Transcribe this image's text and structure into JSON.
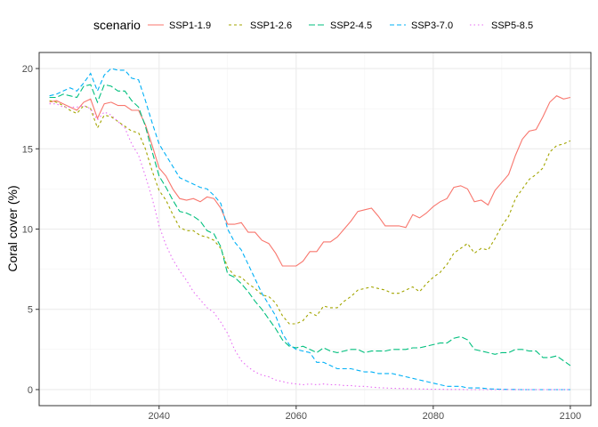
{
  "chart_data": {
    "type": "line",
    "xlabel": "",
    "ylabel": "Coral cover (%)",
    "xlim": [
      2022.5,
      2103.0
    ],
    "ylim": [
      -1.0,
      21.0
    ],
    "x_ticks": [
      2040,
      2060,
      2080,
      2100
    ],
    "y_ticks": [
      0,
      5,
      10,
      15,
      20
    ],
    "x_minor": [
      2030,
      2050,
      2070,
      2090
    ],
    "y_minor": [
      2.5,
      7.5,
      12.5,
      17.5
    ],
    "grid": true,
    "legend": {
      "title": "scenario",
      "position": "top"
    },
    "x": [
      2024,
      2025,
      2026,
      2027,
      2028,
      2029,
      2030,
      2031,
      2032,
      2033,
      2034,
      2035,
      2036,
      2037,
      2038,
      2039,
      2040,
      2041,
      2042,
      2043,
      2044,
      2045,
      2046,
      2047,
      2048,
      2049,
      2050,
      2051,
      2052,
      2053,
      2054,
      2055,
      2056,
      2057,
      2058,
      2059,
      2060,
      2061,
      2062,
      2063,
      2064,
      2065,
      2066,
      2067,
      2068,
      2069,
      2070,
      2071,
      2072,
      2073,
      2074,
      2075,
      2076,
      2077,
      2078,
      2079,
      2080,
      2081,
      2082,
      2083,
      2084,
      2085,
      2086,
      2087,
      2088,
      2089,
      2090,
      2091,
      2092,
      2093,
      2094,
      2095,
      2096,
      2097,
      2098,
      2099,
      2100
    ],
    "series": [
      {
        "name": "SSP1-1.9",
        "color": "#F8766D",
        "dash": "",
        "values": [
          17.9,
          18.0,
          17.8,
          17.6,
          17.4,
          17.9,
          18.1,
          16.9,
          17.8,
          17.9,
          17.7,
          17.7,
          17.4,
          17.4,
          16.5,
          15.2,
          13.8,
          13.3,
          12.5,
          11.9,
          11.8,
          11.9,
          11.7,
          12.0,
          11.9,
          11.3,
          10.3,
          10.3,
          10.4,
          9.8,
          9.8,
          9.3,
          9.1,
          8.5,
          7.7,
          7.7,
          7.7,
          8.0,
          8.6,
          8.6,
          9.2,
          9.2,
          9.5,
          10.0,
          10.5,
          11.1,
          11.2,
          11.3,
          10.8,
          10.2,
          10.2,
          10.2,
          10.1,
          10.9,
          10.7,
          11.0,
          11.4,
          11.7,
          11.9,
          12.6,
          12.7,
          12.5,
          11.7,
          11.8,
          11.5,
          12.4,
          12.9,
          13.4,
          14.6,
          15.6,
          16.1,
          16.2,
          17.0,
          17.9,
          18.3,
          18.1,
          18.2
        ]
      },
      {
        "name": "SSP1-2.6",
        "color": "#A3A500",
        "dash": "3,3",
        "values": [
          18.0,
          17.9,
          17.7,
          17.4,
          17.2,
          17.7,
          17.5,
          16.3,
          17.1,
          17.0,
          16.7,
          16.4,
          16.1,
          16.0,
          15.0,
          13.6,
          12.4,
          11.8,
          10.9,
          10.1,
          9.9,
          9.9,
          9.6,
          9.5,
          9.3,
          8.8,
          7.6,
          7.1,
          7.0,
          6.6,
          6.3,
          5.9,
          5.8,
          5.4,
          4.6,
          4.1,
          4.1,
          4.3,
          4.8,
          4.6,
          5.2,
          5.1,
          5.1,
          5.5,
          5.8,
          6.2,
          6.3,
          6.4,
          6.3,
          6.2,
          6.0,
          6.0,
          6.2,
          6.4,
          6.1,
          6.6,
          7.0,
          7.3,
          7.8,
          8.5,
          8.8,
          9.1,
          8.5,
          8.8,
          8.7,
          9.4,
          10.2,
          10.8,
          11.9,
          12.5,
          13.1,
          13.4,
          13.8,
          14.8,
          15.2,
          15.3,
          15.5
        ]
      },
      {
        "name": "SSP2-4.5",
        "color": "#00BF7D",
        "dash": "7,3",
        "values": [
          18.2,
          18.2,
          18.4,
          18.3,
          18.2,
          18.9,
          19.0,
          17.9,
          19.0,
          18.9,
          18.6,
          18.6,
          18.0,
          17.6,
          16.4,
          14.8,
          13.3,
          12.6,
          11.8,
          11.1,
          11.0,
          10.8,
          10.5,
          9.9,
          9.7,
          8.9,
          7.2,
          7.0,
          6.6,
          6.1,
          5.5,
          5.0,
          4.4,
          3.8,
          3.1,
          2.7,
          2.6,
          2.7,
          2.5,
          2.3,
          2.6,
          2.4,
          2.3,
          2.4,
          2.5,
          2.5,
          2.3,
          2.4,
          2.4,
          2.4,
          2.5,
          2.5,
          2.5,
          2.6,
          2.6,
          2.7,
          2.8,
          2.9,
          2.9,
          3.2,
          3.3,
          3.1,
          2.5,
          2.4,
          2.3,
          2.2,
          2.3,
          2.3,
          2.5,
          2.5,
          2.4,
          2.4,
          2.0,
          2.0,
          2.1,
          1.8,
          1.5
        ]
      },
      {
        "name": "SSP3-7.0",
        "color": "#00B0F6",
        "dash": "5,3",
        "values": [
          18.3,
          18.4,
          18.6,
          18.8,
          18.6,
          19.1,
          19.7,
          18.6,
          19.6,
          20.0,
          19.9,
          19.9,
          19.4,
          19.3,
          18.0,
          16.6,
          15.3,
          14.6,
          13.9,
          13.2,
          13.0,
          12.8,
          12.6,
          12.5,
          12.1,
          11.6,
          10.0,
          9.2,
          8.7,
          7.8,
          6.9,
          6.0,
          5.3,
          4.6,
          3.5,
          2.8,
          2.5,
          2.4,
          2.3,
          1.7,
          1.7,
          1.5,
          1.3,
          1.3,
          1.3,
          1.2,
          1.1,
          1.1,
          1.0,
          1.0,
          1.0,
          0.9,
          0.8,
          0.7,
          0.6,
          0.5,
          0.4,
          0.3,
          0.2,
          0.2,
          0.2,
          0.1,
          0.1,
          0.1,
          0.05,
          0.03,
          0.02,
          0.01,
          0.01,
          0.0,
          0.0,
          0.0,
          0.0,
          0.0,
          0.0,
          0.0,
          0.0
        ]
      },
      {
        "name": "SSP5-8.5",
        "color": "#E76BF3",
        "dash": "1.5,3",
        "values": [
          17.8,
          17.8,
          17.6,
          17.6,
          17.6,
          17.7,
          17.5,
          16.8,
          17.3,
          17.1,
          16.7,
          16.3,
          15.3,
          14.6,
          13.3,
          11.9,
          10.2,
          9.0,
          8.1,
          7.4,
          6.8,
          6.1,
          5.6,
          5.1,
          4.8,
          4.2,
          3.5,
          2.5,
          1.8,
          1.4,
          1.1,
          0.9,
          0.8,
          0.6,
          0.5,
          0.4,
          0.35,
          0.3,
          0.35,
          0.3,
          0.35,
          0.3,
          0.3,
          0.25,
          0.25,
          0.2,
          0.2,
          0.15,
          0.12,
          0.1,
          0.08,
          0.07,
          0.06,
          0.05,
          0.04,
          0.03,
          0.02,
          0.02,
          0.01,
          0.01,
          0.01,
          0.0,
          0.0,
          0.0,
          0.0,
          0.0,
          0.0,
          0.0,
          0.0,
          0.0,
          0.0,
          0.0,
          0.0,
          0.0,
          0.0,
          0.0,
          0.0
        ]
      }
    ]
  }
}
